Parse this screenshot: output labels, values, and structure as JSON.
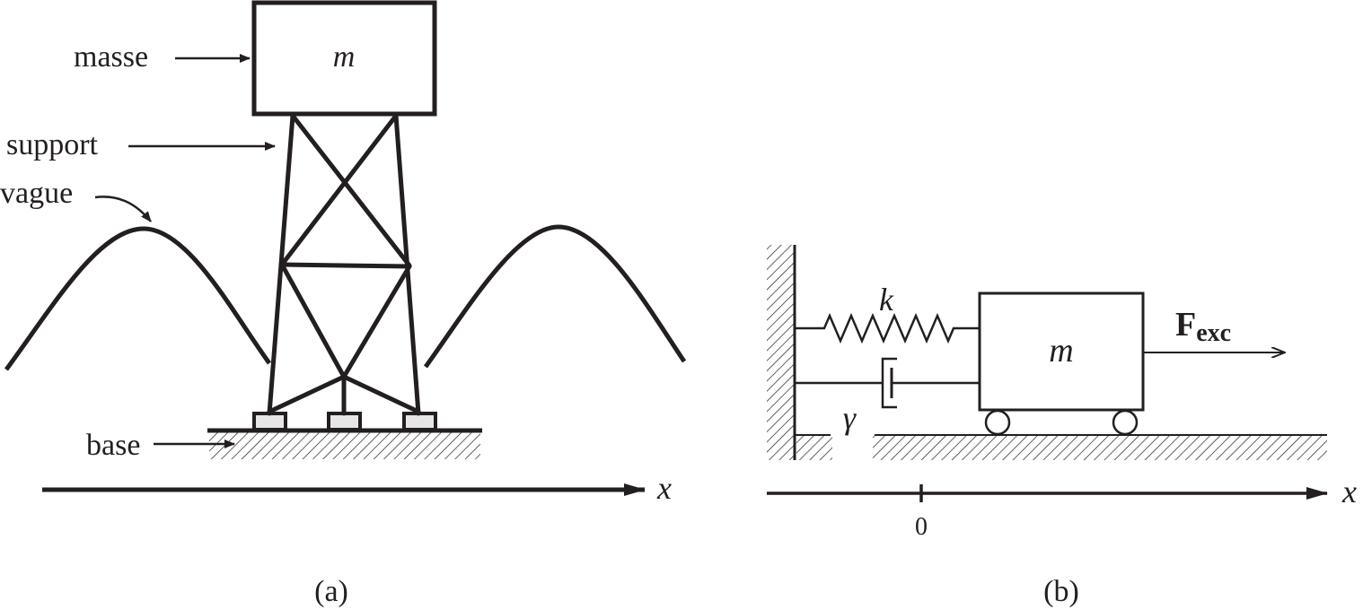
{
  "panel_a": {
    "caption": "(a)",
    "label_mass": "masse",
    "label_support": "support",
    "label_wave": "vague",
    "label_base": "base",
    "mass_symbol": "m",
    "axis_symbol": "x"
  },
  "panel_b": {
    "caption": "(b)",
    "spring_symbol": "k",
    "damper_symbol": "γ",
    "mass_symbol": "m",
    "force_main": "F",
    "force_sub": "exc",
    "axis_symbol": "x",
    "axis_origin": "0"
  },
  "colors": {
    "ink": "#231f20",
    "foot_fill": "#e6e6e6"
  }
}
